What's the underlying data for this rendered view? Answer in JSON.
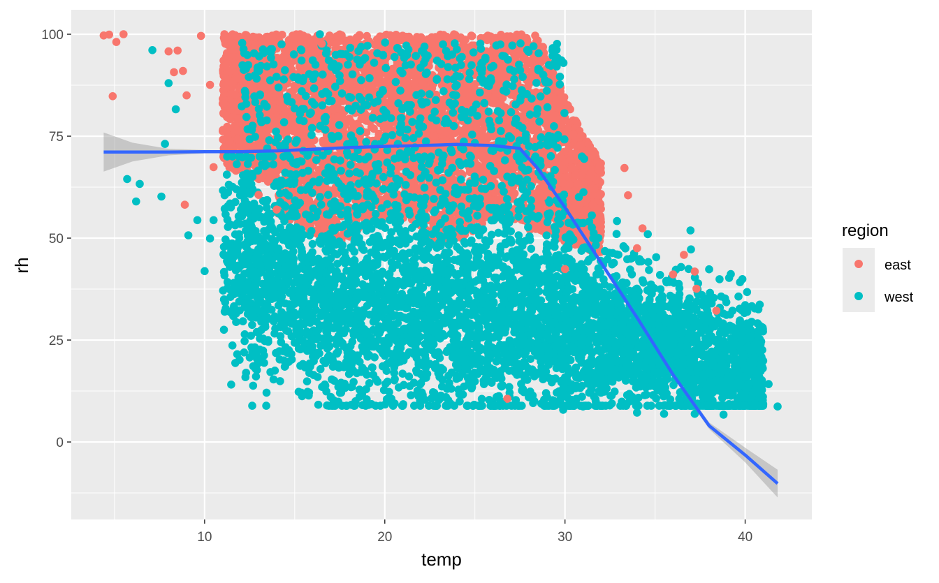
{
  "chart_data": {
    "type": "scatter",
    "title": "",
    "xlabel": "temp",
    "ylabel": "rh",
    "xlim": [
      2.6,
      43.7
    ],
    "ylim": [
      -19,
      106
    ],
    "x_ticks": [
      10,
      20,
      30,
      40
    ],
    "x_tick_labels": [
      "10",
      "20",
      "30",
      "40"
    ],
    "y_ticks": [
      0,
      25,
      50,
      75,
      100
    ],
    "y_tick_labels": [
      "0",
      "25",
      "50",
      "75",
      "100"
    ],
    "grid": true,
    "legend": {
      "title": "region",
      "placement": "right",
      "entries": [
        {
          "label": "east",
          "color": "#F8766D"
        },
        {
          "label": "west",
          "color": "#00BFC4"
        }
      ]
    },
    "series": [
      {
        "name": "east",
        "color": "#F8766D",
        "approx_distribution": {
          "temp_range": [
            4.4,
            38.4
          ],
          "rh_range": [
            10,
            100
          ],
          "dense_temp_range": [
            11,
            32
          ],
          "dense_rh_range": [
            45,
            100
          ]
        },
        "points": [
          [
            4.4,
            99.7
          ],
          [
            4.7,
            99.9
          ],
          [
            5.5,
            100
          ],
          [
            4.9,
            84.8
          ],
          [
            5.1,
            98.1
          ],
          [
            8.5,
            96
          ],
          [
            8.8,
            91
          ],
          [
            9.0,
            85
          ],
          [
            8.0,
            95.8
          ],
          [
            8.3,
            90.7
          ],
          [
            9.8,
            99.6
          ],
          [
            10.3,
            87.6
          ],
          [
            10.5,
            67.4
          ],
          [
            11.1,
            100
          ],
          [
            8.9,
            58.2
          ],
          [
            14.0,
            57.0
          ],
          [
            13.0,
            60.6
          ],
          [
            15.3,
            100
          ],
          [
            16.5,
            97.7
          ],
          [
            28.8,
            60.3
          ],
          [
            33.3,
            67.2
          ],
          [
            33.5,
            60.5
          ],
          [
            34.3,
            52.4
          ],
          [
            36.0,
            41.1
          ],
          [
            37.2,
            41.8
          ],
          [
            37.3,
            37.6
          ],
          [
            38.4,
            32.2
          ],
          [
            30.0,
            42.4
          ],
          [
            26.8,
            10.6
          ],
          [
            34.0,
            47.5
          ],
          [
            36.6,
            45.9
          ]
        ]
      },
      {
        "name": "west",
        "color": "#00BFC4",
        "approx_distribution": {
          "temp_range": [
            5.7,
            41.8
          ],
          "rh_range": [
            6.9,
            100
          ],
          "dense_temp_range": [
            15,
            33
          ],
          "dense_rh_range": [
            12,
            60
          ]
        },
        "points": [
          [
            5.7,
            64.5
          ],
          [
            6.2,
            59.0
          ],
          [
            6.4,
            63.3
          ],
          [
            7.1,
            96.1
          ],
          [
            7.8,
            73.1
          ],
          [
            7.6,
            60.2
          ],
          [
            8.0,
            88.0
          ],
          [
            8.4,
            81.6
          ],
          [
            9.1,
            50.7
          ],
          [
            9.6,
            54.4
          ],
          [
            10.0,
            41.9
          ],
          [
            10.3,
            49.9
          ],
          [
            10.5,
            54.4
          ],
          [
            11.3,
            43.9
          ],
          [
            12.6,
            23.2
          ],
          [
            13.3,
            19.4
          ],
          [
            13.9,
            17.5
          ],
          [
            14.4,
            20.0
          ],
          [
            16.4,
            100
          ],
          [
            16.0,
            93.6
          ],
          [
            19.1,
            9.1
          ],
          [
            23.4,
            11.0
          ],
          [
            24.9,
            8.9
          ],
          [
            26.5,
            9.3
          ],
          [
            29.9,
            7.9
          ],
          [
            31.0,
            8.7
          ],
          [
            34.0,
            7.2
          ],
          [
            35.5,
            6.9
          ],
          [
            37.2,
            6.9
          ],
          [
            38.8,
            6.7
          ],
          [
            39.3,
            22.8
          ],
          [
            39.9,
            21.4
          ],
          [
            40.4,
            18.3
          ],
          [
            41.0,
            19.9
          ],
          [
            41.3,
            14.2
          ],
          [
            41.8,
            8.7
          ],
          [
            41.0,
            9.3
          ],
          [
            40.5,
            20.8
          ],
          [
            39.7,
            26.2
          ],
          [
            38.7,
            19.7
          ],
          [
            37.9,
            32.2
          ],
          [
            37.1,
            12.8
          ]
        ]
      }
    ],
    "smooth": {
      "method": "loess",
      "color": "#3366FF",
      "ribbon_color": "#999999",
      "x": [
        4.4,
        6,
        8,
        10,
        12,
        14,
        16,
        18,
        20,
        22,
        24,
        26,
        27.5,
        28.5,
        30,
        32,
        34,
        36,
        38,
        40,
        41.8
      ],
      "y": [
        71.1,
        71.1,
        71.1,
        71.2,
        71.2,
        71.4,
        71.8,
        72.2,
        72.5,
        72.7,
        73.0,
        72.7,
        72.0,
        67.0,
        57.5,
        44.0,
        30.5,
        16.5,
        4.0,
        -3.2,
        -10.2
      ],
      "ci_low": [
        66.3,
        68.8,
        70.3,
        70.8,
        70.9,
        71.1,
        71.5,
        72.0,
        72.3,
        72.5,
        72.8,
        72.5,
        71.7,
        66.6,
        57.1,
        43.6,
        30.0,
        15.9,
        3.2,
        -5.0,
        -13.6
      ],
      "ci_high": [
        75.9,
        73.4,
        71.9,
        71.6,
        71.5,
        71.7,
        72.1,
        72.4,
        72.7,
        72.9,
        73.2,
        72.9,
        72.3,
        67.4,
        57.9,
        44.4,
        31.0,
        17.1,
        4.8,
        -1.4,
        -6.8
      ]
    }
  }
}
